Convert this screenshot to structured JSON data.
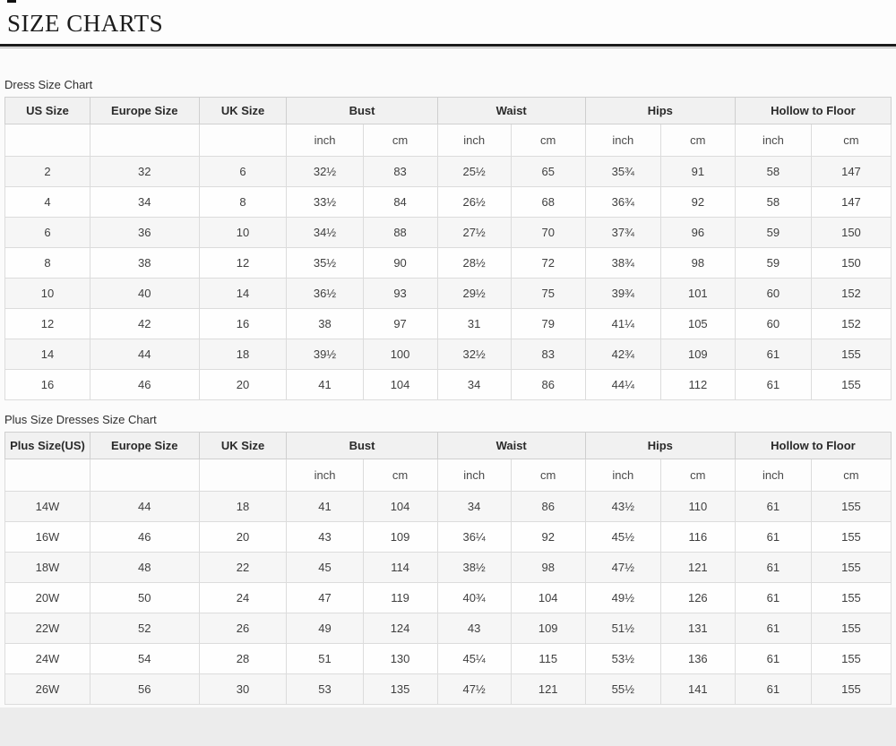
{
  "page": {
    "title": "SIZE CHARTS"
  },
  "tables": [
    {
      "label": "Dress Size Chart",
      "columns": [
        {
          "label": "US Size",
          "span": 1
        },
        {
          "label": "Europe Size",
          "span": 1
        },
        {
          "label": "UK Size",
          "span": 1
        },
        {
          "label": "Bust",
          "span": 2
        },
        {
          "label": "Waist",
          "span": 2
        },
        {
          "label": "Hips",
          "span": 2
        },
        {
          "label": "Hollow to Floor",
          "span": 2
        }
      ],
      "unit_row": [
        "",
        "",
        "",
        "inch",
        "cm",
        "inch",
        "cm",
        "inch",
        "cm",
        "inch",
        "cm"
      ],
      "rows": [
        [
          "2",
          "32",
          "6",
          "32½",
          "83",
          "25½",
          "65",
          "35¾",
          "91",
          "58",
          "147"
        ],
        [
          "4",
          "34",
          "8",
          "33½",
          "84",
          "26½",
          "68",
          "36¾",
          "92",
          "58",
          "147"
        ],
        [
          "6",
          "36",
          "10",
          "34½",
          "88",
          "27½",
          "70",
          "37¾",
          "96",
          "59",
          "150"
        ],
        [
          "8",
          "38",
          "12",
          "35½",
          "90",
          "28½",
          "72",
          "38¾",
          "98",
          "59",
          "150"
        ],
        [
          "10",
          "40",
          "14",
          "36½",
          "93",
          "29½",
          "75",
          "39¾",
          "101",
          "60",
          "152"
        ],
        [
          "12",
          "42",
          "16",
          "38",
          "97",
          "31",
          "79",
          "41¼",
          "105",
          "60",
          "152"
        ],
        [
          "14",
          "44",
          "18",
          "39½",
          "100",
          "32½",
          "83",
          "42¾",
          "109",
          "61",
          "155"
        ],
        [
          "16",
          "46",
          "20",
          "41",
          "104",
          "34",
          "86",
          "44¼",
          "112",
          "61",
          "155"
        ]
      ]
    },
    {
      "label": "Plus Size Dresses Size Chart",
      "columns": [
        {
          "label": "Plus Size(US)",
          "span": 1
        },
        {
          "label": "Europe Size",
          "span": 1
        },
        {
          "label": "UK Size",
          "span": 1
        },
        {
          "label": "Bust",
          "span": 2
        },
        {
          "label": "Waist",
          "span": 2
        },
        {
          "label": "Hips",
          "span": 2
        },
        {
          "label": "Hollow to Floor",
          "span": 2
        }
      ],
      "unit_row": [
        "",
        "",
        "",
        "inch",
        "cm",
        "inch",
        "cm",
        "inch",
        "cm",
        "inch",
        "cm"
      ],
      "rows": [
        [
          "14W",
          "44",
          "18",
          "41",
          "104",
          "34",
          "86",
          "43½",
          "110",
          "61",
          "155"
        ],
        [
          "16W",
          "46",
          "20",
          "43",
          "109",
          "36¼",
          "92",
          "45½",
          "116",
          "61",
          "155"
        ],
        [
          "18W",
          "48",
          "22",
          "45",
          "114",
          "38½",
          "98",
          "47½",
          "121",
          "61",
          "155"
        ],
        [
          "20W",
          "50",
          "24",
          "47",
          "119",
          "40¾",
          "104",
          "49½",
          "126",
          "61",
          "155"
        ],
        [
          "22W",
          "52",
          "26",
          "49",
          "124",
          "43",
          "109",
          "51½",
          "131",
          "61",
          "155"
        ],
        [
          "24W",
          "54",
          "28",
          "51",
          "130",
          "45¼",
          "115",
          "53½",
          "136",
          "61",
          "155"
        ],
        [
          "26W",
          "56",
          "30",
          "53",
          "135",
          "47½",
          "121",
          "55½",
          "141",
          "61",
          "155"
        ]
      ]
    }
  ]
}
